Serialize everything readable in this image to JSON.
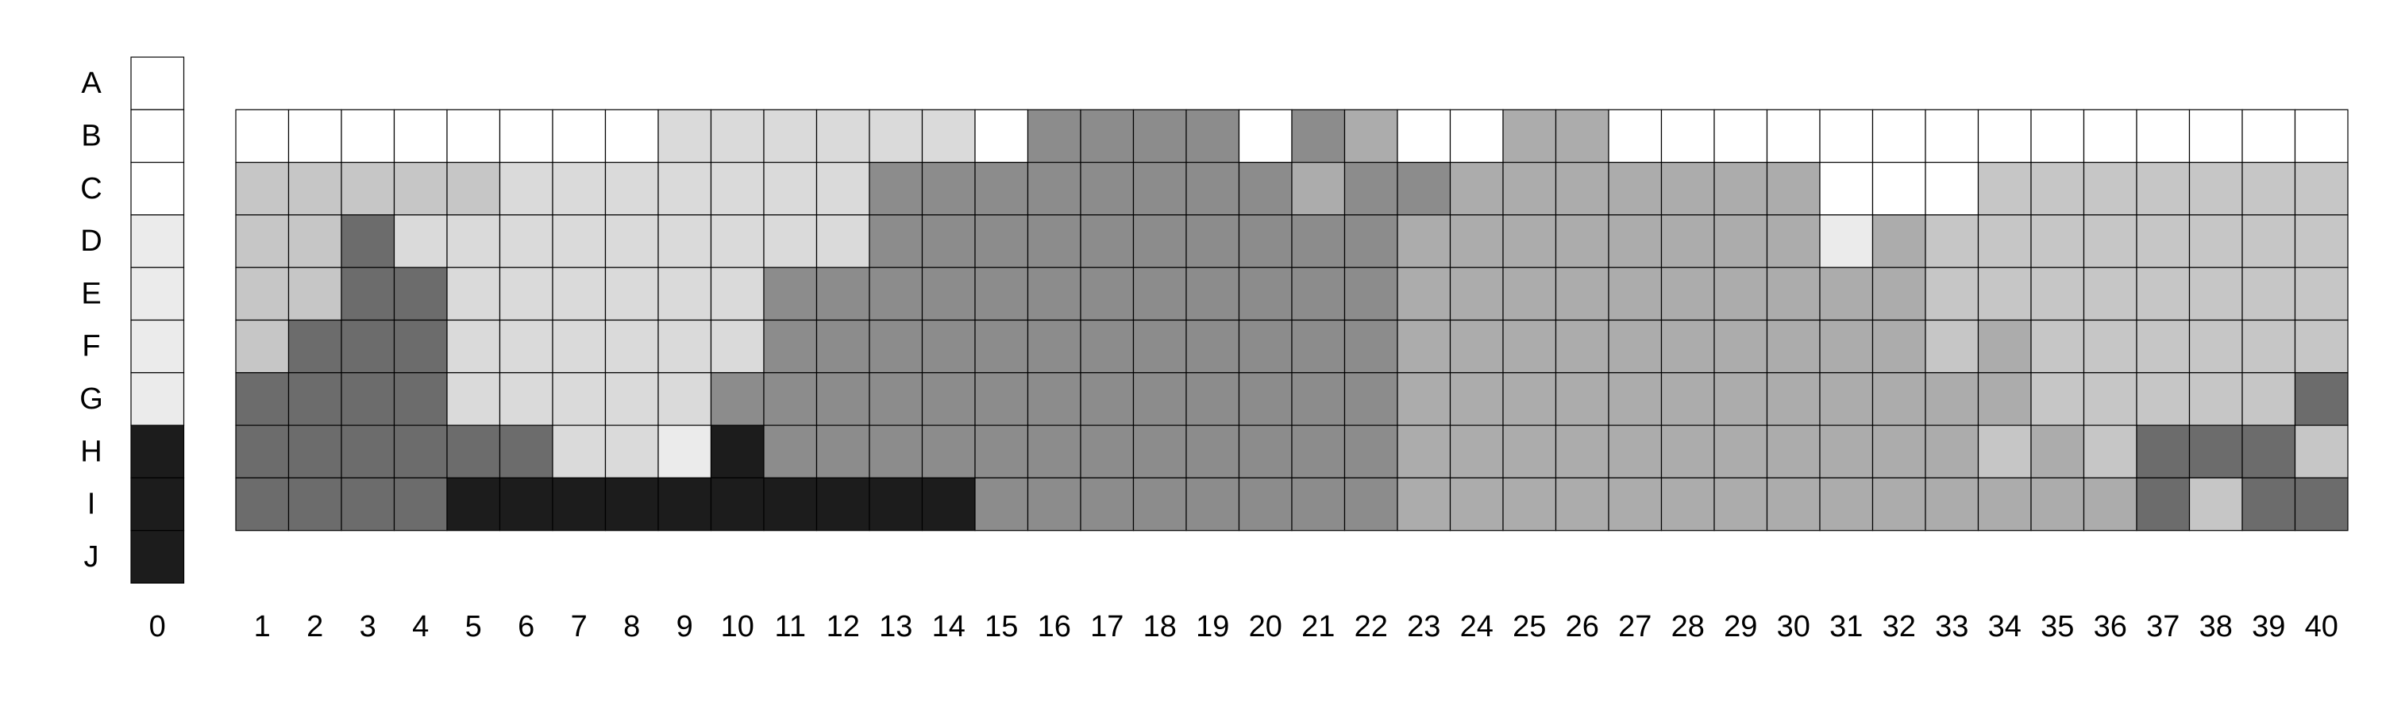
{
  "chart_data": {
    "type": "heatmap",
    "title": "",
    "xlabel": "",
    "ylabel": "",
    "grid": true,
    "legend": "none",
    "rows": [
      "A",
      "B",
      "C",
      "D",
      "E",
      "F",
      "G",
      "H",
      "I",
      "J"
    ],
    "columns": [
      "0",
      "1",
      "2",
      "3",
      "4",
      "5",
      "6",
      "7",
      "8",
      "9",
      "10",
      "11",
      "12",
      "13",
      "14",
      "15",
      "16",
      "17",
      "18",
      "19",
      "20",
      "21",
      "22",
      "23",
      "24",
      "25",
      "26",
      "27",
      "28",
      "29",
      "30",
      "31",
      "32",
      "33",
      "34",
      "35",
      "36",
      "37",
      "38",
      "39",
      "40"
    ],
    "palette": {
      "1": "#ffffff",
      "2": "#ebebeb",
      "3": "#dadada",
      "4": "#c6c6c6",
      "5": "#acacac",
      "6": "#8c8c8c",
      "7": "#6c6c6c",
      "8": "#1c1c1c"
    },
    "reference_column": {
      "column": "0",
      "levels": [
        1,
        1,
        1,
        2,
        2,
        2,
        2,
        8,
        8,
        8
      ]
    },
    "matrix_rows": [
      "B",
      "C",
      "D",
      "E",
      "F",
      "G",
      "H",
      "I"
    ],
    "matrix_columns_start": 1,
    "levels": [
      [
        1,
        1,
        1,
        1,
        1,
        1,
        1,
        1,
        3,
        3,
        3,
        3,
        3,
        3,
        1,
        6,
        6,
        6,
        6,
        1,
        6,
        5,
        1,
        1,
        5,
        5,
        1,
        1,
        1,
        1,
        1,
        1,
        1,
        1,
        1,
        1,
        1,
        1,
        1,
        1
      ],
      [
        4,
        4,
        4,
        4,
        4,
        3,
        3,
        3,
        3,
        3,
        3,
        3,
        6,
        6,
        6,
        6,
        6,
        6,
        6,
        6,
        5,
        6,
        6,
        5,
        5,
        5,
        5,
        5,
        5,
        5,
        1,
        1,
        1,
        4,
        4,
        4,
        4,
        4,
        4,
        4
      ],
      [
        4,
        4,
        7,
        3,
        3,
        3,
        3,
        3,
        3,
        3,
        3,
        3,
        6,
        6,
        6,
        6,
        6,
        6,
        6,
        6,
        6,
        6,
        5,
        5,
        5,
        5,
        5,
        5,
        5,
        5,
        2,
        5,
        4,
        4,
        4,
        4,
        4,
        4,
        4,
        4
      ],
      [
        4,
        4,
        7,
        7,
        3,
        3,
        3,
        3,
        3,
        3,
        6,
        6,
        6,
        6,
        6,
        6,
        6,
        6,
        6,
        6,
        6,
        6,
        5,
        5,
        5,
        5,
        5,
        5,
        5,
        5,
        5,
        5,
        4,
        4,
        4,
        4,
        4,
        4,
        4,
        4
      ],
      [
        4,
        7,
        7,
        7,
        3,
        3,
        3,
        3,
        3,
        3,
        6,
        6,
        6,
        6,
        6,
        6,
        6,
        6,
        6,
        6,
        6,
        6,
        5,
        5,
        5,
        5,
        5,
        5,
        5,
        5,
        5,
        5,
        4,
        5,
        4,
        4,
        4,
        4,
        4,
        4
      ],
      [
        7,
        7,
        7,
        7,
        3,
        3,
        3,
        3,
        3,
        6,
        6,
        6,
        6,
        6,
        6,
        6,
        6,
        6,
        6,
        6,
        6,
        6,
        5,
        5,
        5,
        5,
        5,
        5,
        5,
        5,
        5,
        5,
        5,
        5,
        4,
        4,
        4,
        4,
        4,
        7
      ],
      [
        7,
        7,
        7,
        7,
        7,
        7,
        3,
        3,
        2,
        8,
        6,
        6,
        6,
        6,
        6,
        6,
        6,
        6,
        6,
        6,
        6,
        6,
        5,
        5,
        5,
        5,
        5,
        5,
        5,
        5,
        5,
        5,
        5,
        4,
        5,
        4,
        7,
        7,
        7,
        4
      ],
      [
        7,
        7,
        7,
        7,
        8,
        8,
        8,
        8,
        8,
        8,
        8,
        8,
        8,
        8,
        6,
        6,
        6,
        6,
        6,
        6,
        6,
        6,
        5,
        5,
        5,
        5,
        5,
        5,
        5,
        5,
        5,
        5,
        5,
        5,
        5,
        5,
        7,
        4,
        7,
        7
      ]
    ]
  }
}
